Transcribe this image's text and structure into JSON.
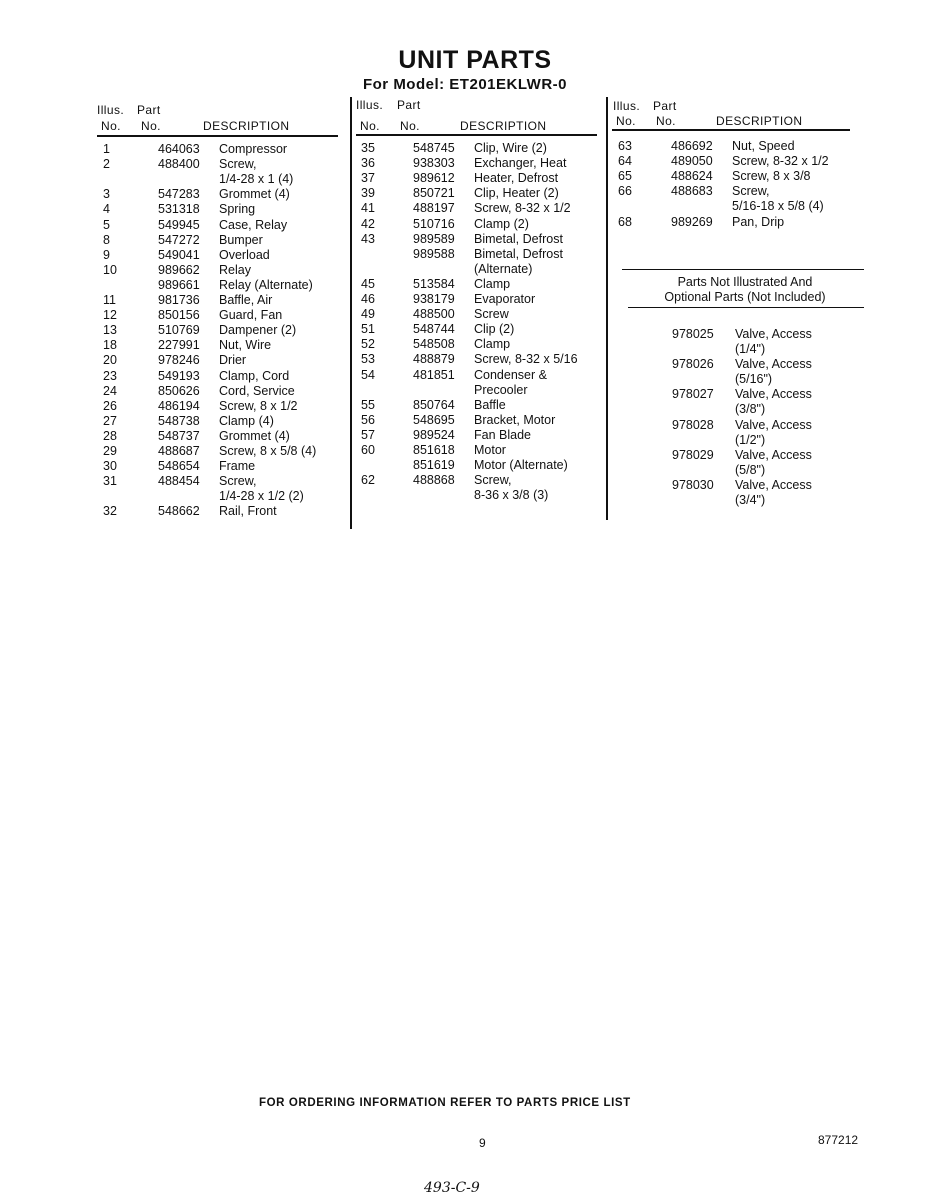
{
  "header": {
    "title": "UNIT PARTS",
    "subtitle": "For Model: ET201EKLWR-0"
  },
  "column_headers": {
    "illus": "Illus.",
    "part": "Part",
    "no1": "No.",
    "no2": "No.",
    "description": "DESCRIPTION"
  },
  "columns": [
    {
      "rows": [
        {
          "illus": "1",
          "part": "464063",
          "desc": [
            "Compressor"
          ]
        },
        {
          "illus": "2",
          "part": "488400",
          "desc": [
            "Screw,",
            "1/4-28 x 1 (4)"
          ]
        },
        {
          "illus": "3",
          "part": "547283",
          "desc": [
            "Grommet (4)"
          ]
        },
        {
          "illus": "4",
          "part": "531318",
          "desc": [
            "Spring"
          ]
        },
        {
          "illus": "5",
          "part": "549945",
          "desc": [
            "Case, Relay"
          ]
        },
        {
          "illus": "8",
          "part": "547272",
          "desc": [
            "Bumper"
          ]
        },
        {
          "illus": "9",
          "part": "549041",
          "desc": [
            "Overload"
          ]
        },
        {
          "illus": "10",
          "part": "989662",
          "desc": [
            "Relay"
          ]
        },
        {
          "illus": "",
          "part": "989661",
          "desc": [
            "Relay (Alternate)"
          ]
        },
        {
          "illus": "11",
          "part": "981736",
          "desc": [
            "Baffle, Air"
          ]
        },
        {
          "illus": "12",
          "part": "850156",
          "desc": [
            "Guard, Fan"
          ]
        },
        {
          "illus": "13",
          "part": "510769",
          "desc": [
            "Dampener (2)"
          ]
        },
        {
          "illus": "18",
          "part": "227991",
          "desc": [
            "Nut, Wire"
          ]
        },
        {
          "illus": "20",
          "part": "978246",
          "desc": [
            "Drier"
          ]
        },
        {
          "illus": "23",
          "part": "549193",
          "desc": [
            "Clamp, Cord"
          ]
        },
        {
          "illus": "24",
          "part": "850626",
          "desc": [
            "Cord, Service"
          ]
        },
        {
          "illus": "26",
          "part": "486194",
          "desc": [
            "Screw, 8 x 1/2"
          ]
        },
        {
          "illus": "27",
          "part": "548738",
          "desc": [
            "Clamp (4)"
          ]
        },
        {
          "illus": "28",
          "part": "548737",
          "desc": [
            "Grommet (4)"
          ]
        },
        {
          "illus": "29",
          "part": "488687",
          "desc": [
            "Screw, 8 x 5/8 (4)"
          ]
        },
        {
          "illus": "30",
          "part": "548654",
          "desc": [
            "Frame"
          ]
        },
        {
          "illus": "31",
          "part": "488454",
          "desc": [
            "Screw,",
            "1/4-28 x 1/2 (2)"
          ]
        },
        {
          "illus": "32",
          "part": "548662",
          "desc": [
            "Rail, Front"
          ]
        }
      ]
    },
    {
      "rows": [
        {
          "illus": "35",
          "part": "548745",
          "desc": [
            "Clip, Wire (2)"
          ]
        },
        {
          "illus": "36",
          "part": "938303",
          "desc": [
            "Exchanger, Heat"
          ]
        },
        {
          "illus": "37",
          "part": "989612",
          "desc": [
            "Heater, Defrost"
          ]
        },
        {
          "illus": "39",
          "part": "850721",
          "desc": [
            "Clip, Heater (2)"
          ]
        },
        {
          "illus": "41",
          "part": "488197",
          "desc": [
            "Screw, 8-32 x 1/2"
          ]
        },
        {
          "illus": "42",
          "part": "510716",
          "desc": [
            "Clamp (2)"
          ]
        },
        {
          "illus": "43",
          "part": "989589",
          "desc": [
            "Bimetal, Defrost"
          ]
        },
        {
          "illus": "",
          "part": "989588",
          "desc": [
            "Bimetal, Defrost",
            "(Alternate)"
          ]
        },
        {
          "illus": "45",
          "part": "513584",
          "desc": [
            "Clamp"
          ]
        },
        {
          "illus": "46",
          "part": "938179",
          "desc": [
            "Evaporator"
          ]
        },
        {
          "illus": "49",
          "part": "488500",
          "desc": [
            "Screw"
          ]
        },
        {
          "illus": "51",
          "part": "548744",
          "desc": [
            "Clip (2)"
          ]
        },
        {
          "illus": "52",
          "part": "548508",
          "desc": [
            "Clamp"
          ]
        },
        {
          "illus": "53",
          "part": "488879",
          "desc": [
            "Screw, 8-32 x 5/16"
          ]
        },
        {
          "illus": "54",
          "part": "481851",
          "desc": [
            "Condenser &",
            "Precooler"
          ]
        },
        {
          "illus": "55",
          "part": "850764",
          "desc": [
            "Baffle"
          ]
        },
        {
          "illus": "56",
          "part": "548695",
          "desc": [
            "Bracket, Motor"
          ]
        },
        {
          "illus": "57",
          "part": "989524",
          "desc": [
            "Fan Blade"
          ]
        },
        {
          "illus": "60",
          "part": "851618",
          "desc": [
            "Motor"
          ]
        },
        {
          "illus": "",
          "part": "851619",
          "desc": [
            "Motor (Alternate)"
          ]
        },
        {
          "illus": "62",
          "part": "488868",
          "desc": [
            "Screw,",
            "8-36 x 3/8 (3)"
          ]
        }
      ]
    },
    {
      "rows": [
        {
          "illus": "63",
          "part": "486692",
          "desc": [
            "Nut, Speed"
          ]
        },
        {
          "illus": "64",
          "part": "489050",
          "desc": [
            "Screw, 8-32 x 1/2"
          ]
        },
        {
          "illus": "65",
          "part": "488624",
          "desc": [
            "Screw, 8 x 3/8"
          ]
        },
        {
          "illus": "66",
          "part": "488683",
          "desc": [
            "Screw,",
            "5/16-18 x 5/8 (4)"
          ]
        },
        {
          "illus": "68",
          "part": "989269",
          "desc": [
            "Pan, Drip"
          ]
        }
      ]
    }
  ],
  "not_illustrated": {
    "heading_line1": "Parts Not Illustrated And",
    "heading_line2": "Optional Parts (Not Included)",
    "rows": [
      {
        "part": "978025",
        "desc": [
          "Valve, Access",
          "(1/4\")"
        ]
      },
      {
        "part": "978026",
        "desc": [
          "Valve, Access",
          "(5/16\")"
        ]
      },
      {
        "part": "978027",
        "desc": [
          "Valve, Access",
          "(3/8\")"
        ]
      },
      {
        "part": "978028",
        "desc": [
          "Valve, Access",
          "(1/2\")"
        ]
      },
      {
        "part": "978029",
        "desc": [
          "Valve, Access",
          "(5/8\")"
        ]
      },
      {
        "part": "978030",
        "desc": [
          "Valve, Access",
          "(3/4\")"
        ]
      }
    ]
  },
  "footer": {
    "ordering_note": "FOR ORDERING INFORMATION REFER TO PARTS PRICE LIST",
    "page_number": "9",
    "doc_number": "877212",
    "handwritten_note": "493-C-9"
  }
}
